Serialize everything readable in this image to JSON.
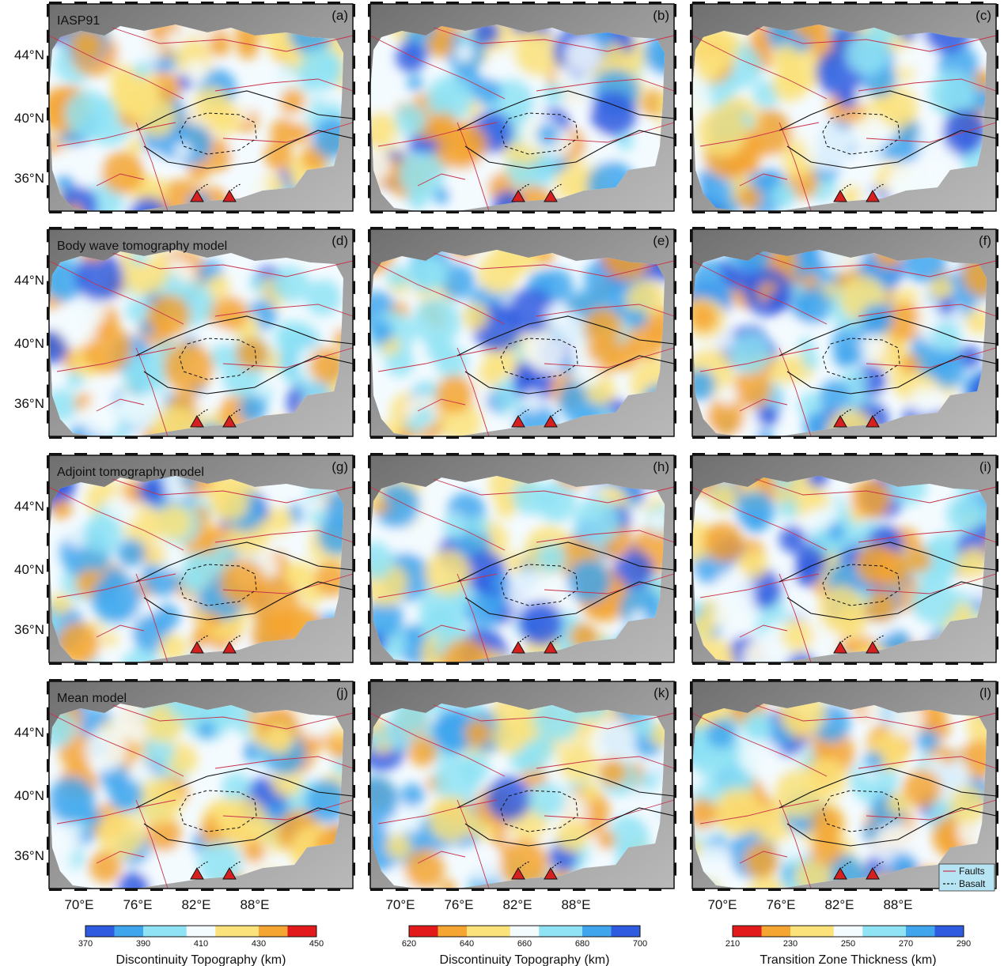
{
  "rows": [
    {
      "title": "IASP91",
      "panels": [
        "(a)",
        "(b)",
        "(c)"
      ]
    },
    {
      "title": "Body wave tomography model",
      "panels": [
        "(d)",
        "(e)",
        "(f)"
      ]
    },
    {
      "title": "Adjoint tomography model",
      "panels": [
        "(g)",
        "(h)",
        "(i)"
      ]
    },
    {
      "title": "Mean model",
      "panels": [
        "(j)",
        "(k)",
        "(l)"
      ]
    }
  ],
  "lat_labels": [
    "44°N",
    "40°N",
    "36°N"
  ],
  "lon_labels": [
    "70°E",
    "76°E",
    "82°E",
    "88°E"
  ],
  "legend": {
    "faults": "Faults",
    "basalt": "Basalt"
  },
  "colorbars": [
    {
      "title": "Discontinuity Topography (km)",
      "ticks": [
        "370",
        "390",
        "410",
        "430",
        "450"
      ],
      "scale": "blue-to-red"
    },
    {
      "title": "Discontinuity Topography (km)",
      "ticks": [
        "620",
        "640",
        "660",
        "680",
        "700"
      ],
      "scale": "red-to-blue"
    },
    {
      "title": "Transition Zone Thickness (km)",
      "ticks": [
        "210",
        "230",
        "250",
        "270",
        "290"
      ],
      "scale": "red-to-blue"
    }
  ],
  "colors": {
    "blue_dark": "#2f5be0",
    "blue": "#3fa6ee",
    "cyan": "#8fe3f5",
    "white": "#f4fbff",
    "yellow": "#fce27a",
    "orange": "#f5a531",
    "red": "#e31a1c",
    "relief": "#8c8c8c",
    "fault": "#c8324b",
    "volcano": "#d62020"
  }
}
